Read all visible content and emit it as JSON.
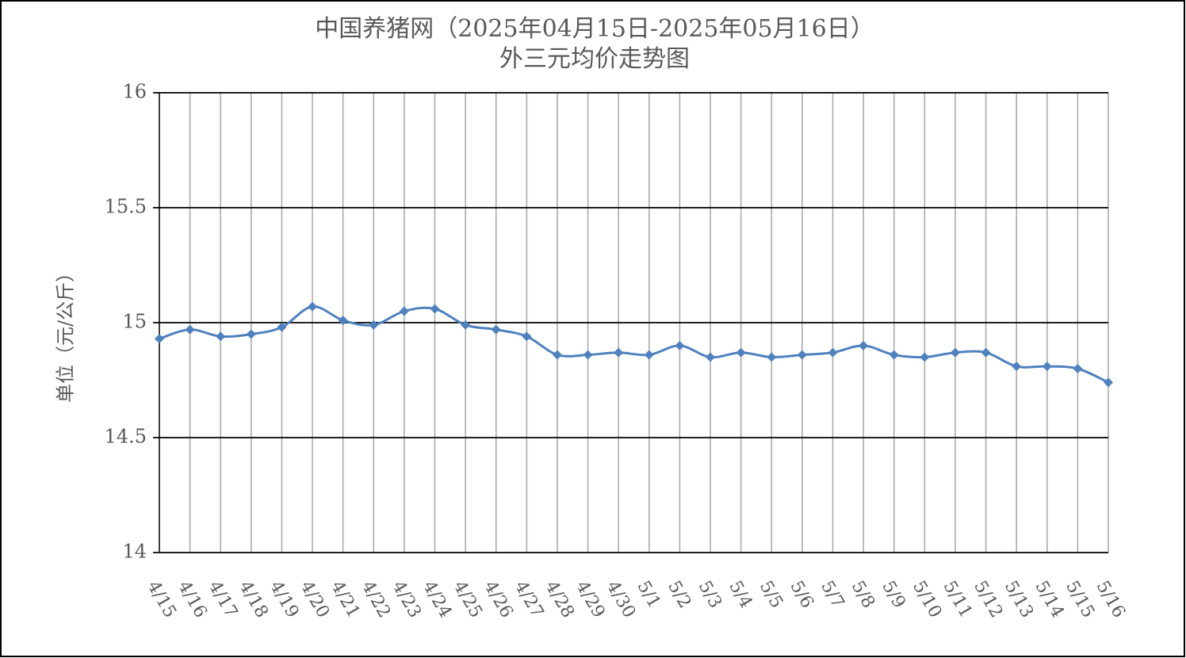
{
  "chart_data": {
    "type": "line",
    "title": "中国养猪网（2025年04月15日-2025年05月16日）",
    "subtitle": "外三元均价走势图",
    "y_label": "单位（元/公斤）",
    "categories": [
      "4/15",
      "4/16",
      "4/17",
      "4/18",
      "4/19",
      "4/20",
      "4/21",
      "4/22",
      "4/23",
      "4/24",
      "4/25",
      "4/26",
      "4/27",
      "4/28",
      "4/29",
      "4/30",
      "5/1",
      "5/2",
      "5/3",
      "5/4",
      "5/5",
      "5/6",
      "5/7",
      "5/8",
      "5/9",
      "5/10",
      "5/11",
      "5/12",
      "5/13",
      "5/14",
      "5/15",
      "5/16"
    ],
    "series": [
      {
        "name": "外三元均价",
        "color": "#4f81bd",
        "values": [
          14.93,
          14.97,
          14.94,
          14.95,
          14.98,
          15.07,
          15.01,
          14.99,
          15.05,
          15.06,
          14.99,
          14.97,
          14.94,
          14.86,
          14.86,
          14.87,
          14.86,
          14.9,
          14.85,
          14.87,
          14.85,
          14.86,
          14.87,
          14.9,
          14.86,
          14.85,
          14.87,
          14.87,
          14.81,
          14.81,
          14.8,
          14.74
        ]
      }
    ],
    "ylim": [
      14,
      16
    ],
    "yticks": [
      14,
      14.5,
      15,
      15.5,
      16
    ],
    "grid": true
  }
}
